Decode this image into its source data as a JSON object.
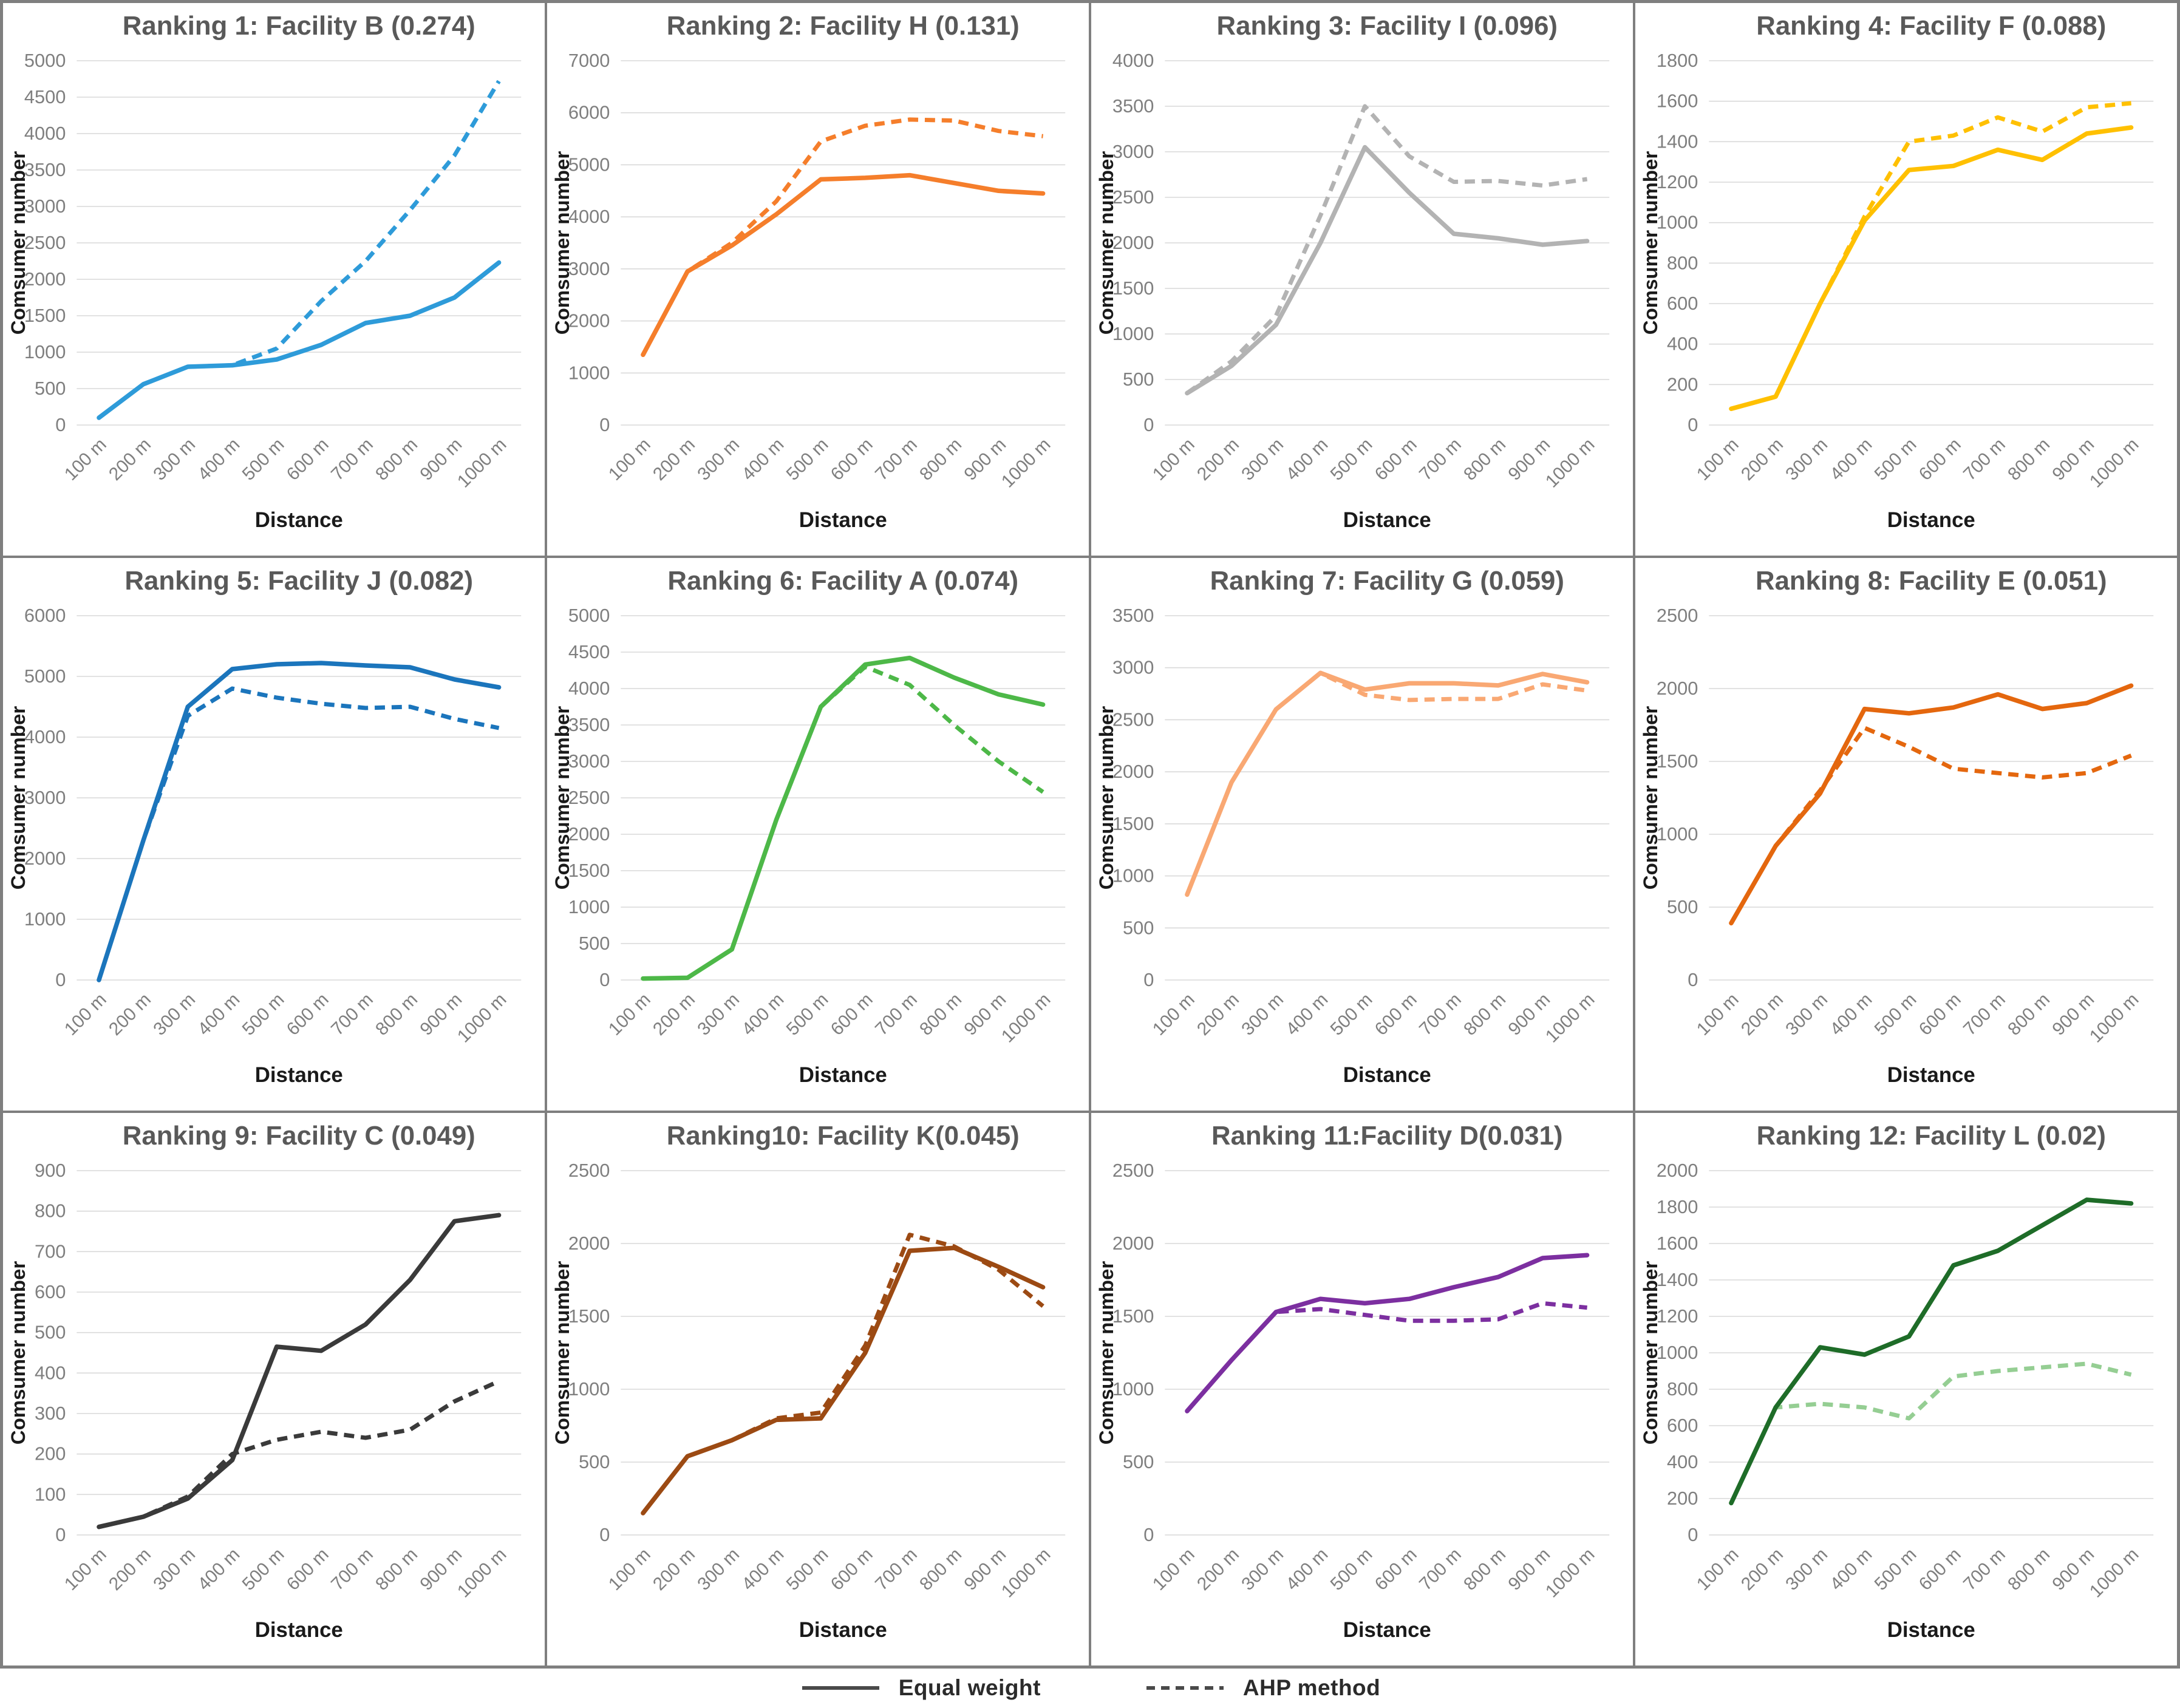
{
  "axis": {
    "x_title": "Distance",
    "y_title": "Comsumer number",
    "x_categories": [
      "100 m",
      "200 m",
      "300 m",
      "400 m",
      "500 m",
      "600 m",
      "700 m",
      "800 m",
      "900 m",
      "1000 m"
    ]
  },
  "legend": {
    "items": [
      {
        "label": "Equal weight",
        "style": "solid",
        "color": "#4a4a4a"
      },
      {
        "label": "AHP method",
        "style": "dashed",
        "color": "#4a4a4a"
      }
    ]
  },
  "styles": {
    "title_color": "#595959",
    "tick_color": "#7f7f7f",
    "axis_title_color": "#1a1a1a",
    "gridline_color": "#d9d9d9",
    "panel_border_color": "#7f7f7f"
  },
  "chart_data": [
    {
      "type": "line",
      "title": "Ranking 1: Facility B (0.274)",
      "color": "#2e9bd9",
      "dash_color": "#2e9bd9",
      "ylim": [
        0,
        5000
      ],
      "ystep": 500,
      "grid": true,
      "xlabel": "Distance",
      "ylabel": "Comsumer number",
      "categories": [
        "100 m",
        "200 m",
        "300 m",
        "400 m",
        "500 m",
        "600 m",
        "700 m",
        "800 m",
        "900 m",
        "1000 m"
      ],
      "series": [
        {
          "name": "Equal weight",
          "values": [
            100,
            560,
            800,
            820,
            900,
            1100,
            1400,
            1500,
            1750,
            2230
          ]
        },
        {
          "name": "AHP method",
          "values": [
            100,
            560,
            800,
            820,
            1050,
            1700,
            2250,
            2950,
            3700,
            4720
          ]
        }
      ]
    },
    {
      "type": "line",
      "title": "Ranking 2: Facility H (0.131)",
      "color": "#f57e2b",
      "dash_color": "#f57e2b",
      "ylim": [
        0,
        7000
      ],
      "ystep": 1000,
      "grid": true,
      "xlabel": "Distance",
      "ylabel": "Comsumer number",
      "categories": [
        "100 m",
        "200 m",
        "300 m",
        "400 m",
        "500 m",
        "600 m",
        "700 m",
        "800 m",
        "900 m",
        "1000 m"
      ],
      "series": [
        {
          "name": "Equal weight",
          "values": [
            1350,
            2950,
            3450,
            4050,
            4720,
            4750,
            4800,
            4650,
            4500,
            4450
          ]
        },
        {
          "name": "AHP method",
          "values": [
            1350,
            2950,
            3500,
            4300,
            5450,
            5750,
            5870,
            5850,
            5650,
            5550
          ]
        }
      ]
    },
    {
      "type": "line",
      "title": "Ranking 3: Facility I (0.096)",
      "color": "#b3b3b3",
      "dash_color": "#b3b3b3",
      "ylim": [
        0,
        4000
      ],
      "ystep": 500,
      "grid": true,
      "xlabel": "Distance",
      "ylabel": "Comsumer number",
      "categories": [
        "100 m",
        "200 m",
        "300 m",
        "400 m",
        "500 m",
        "600 m",
        "700 m",
        "800 m",
        "900 m",
        "1000 m"
      ],
      "series": [
        {
          "name": "Equal weight",
          "values": [
            350,
            650,
            1100,
            2000,
            3050,
            2550,
            2100,
            2050,
            1980,
            2020
          ]
        },
        {
          "name": "AHP method",
          "values": [
            350,
            700,
            1200,
            2300,
            3500,
            2950,
            2670,
            2680,
            2630,
            2700
          ]
        }
      ]
    },
    {
      "type": "line",
      "title": "Ranking 4: Facility F (0.088)",
      "color": "#ffc000",
      "dash_color": "#ffc000",
      "ylim": [
        0,
        1800
      ],
      "ystep": 200,
      "grid": true,
      "xlabel": "Distance",
      "ylabel": "Comsumer number",
      "categories": [
        "100 m",
        "200 m",
        "300 m",
        "400 m",
        "500 m",
        "600 m",
        "700 m",
        "800 m",
        "900 m",
        "1000 m"
      ],
      "series": [
        {
          "name": "Equal weight",
          "values": [
            80,
            140,
            600,
            1010,
            1260,
            1280,
            1360,
            1310,
            1440,
            1470
          ]
        },
        {
          "name": "AHP method",
          "values": [
            80,
            140,
            600,
            1030,
            1400,
            1430,
            1520,
            1450,
            1570,
            1590
          ]
        }
      ]
    },
    {
      "type": "line",
      "title": "Ranking 5: Facility J (0.082)",
      "color": "#1b75bc",
      "dash_color": "#1b75bc",
      "ylim": [
        0,
        6000
      ],
      "ystep": 1000,
      "grid": true,
      "xlabel": "Distance",
      "ylabel": "Comsumer number",
      "categories": [
        "100 m",
        "200 m",
        "300 m",
        "400 m",
        "500 m",
        "600 m",
        "700 m",
        "800 m",
        "900 m",
        "1000 m"
      ],
      "series": [
        {
          "name": "Equal weight",
          "values": [
            0,
            2300,
            4500,
            5120,
            5200,
            5220,
            5180,
            5150,
            4950,
            4820
          ]
        },
        {
          "name": "AHP method",
          "values": [
            0,
            2300,
            4350,
            4800,
            4650,
            4550,
            4480,
            4500,
            4300,
            4150
          ]
        }
      ]
    },
    {
      "type": "line",
      "title": "Ranking 6: Facility A (0.074)",
      "color": "#4db848",
      "dash_color": "#4db848",
      "ylim": [
        0,
        5000
      ],
      "ystep": 500,
      "grid": true,
      "xlabel": "Distance",
      "ylabel": "Comsumer number",
      "categories": [
        "100 m",
        "200 m",
        "300 m",
        "400 m",
        "500 m",
        "600 m",
        "700 m",
        "800 m",
        "900 m",
        "1000 m"
      ],
      "series": [
        {
          "name": "Equal weight",
          "values": [
            20,
            30,
            420,
            2200,
            3750,
            4330,
            4420,
            4150,
            3920,
            3780
          ]
        },
        {
          "name": "AHP method",
          "values": [
            20,
            30,
            420,
            2200,
            3750,
            4300,
            4050,
            3500,
            3000,
            2580
          ]
        }
      ]
    },
    {
      "type": "line",
      "title": "Ranking 7: Facility G (0.059)",
      "color": "#f9a873",
      "dash_color": "#f9a873",
      "ylim": [
        0,
        3500
      ],
      "ystep": 500,
      "grid": true,
      "xlabel": "Distance",
      "ylabel": "Comsumer number",
      "categories": [
        "100 m",
        "200 m",
        "300 m",
        "400 m",
        "500 m",
        "600 m",
        "700 m",
        "800 m",
        "900 m",
        "1000 m"
      ],
      "series": [
        {
          "name": "Equal weight",
          "values": [
            820,
            1900,
            2600,
            2950,
            2790,
            2850,
            2850,
            2830,
            2940,
            2860
          ]
        },
        {
          "name": "AHP method",
          "values": [
            820,
            1900,
            2600,
            2950,
            2740,
            2690,
            2700,
            2700,
            2840,
            2780
          ]
        }
      ]
    },
    {
      "type": "line",
      "title": "Ranking 8: Facility E (0.051)",
      "color": "#e4670e",
      "dash_color": "#e4670e",
      "ylim": [
        0,
        2500
      ],
      "ystep": 500,
      "grid": true,
      "xlabel": "Distance",
      "ylabel": "Comsumer number",
      "categories": [
        "100 m",
        "200 m",
        "300 m",
        "400 m",
        "500 m",
        "600 m",
        "700 m",
        "800 m",
        "900 m",
        "1000 m"
      ],
      "series": [
        {
          "name": "Equal weight",
          "values": [
            390,
            920,
            1280,
            1860,
            1830,
            1870,
            1960,
            1860,
            1900,
            2020
          ]
        },
        {
          "name": "AHP method",
          "values": [
            390,
            920,
            1300,
            1730,
            1600,
            1450,
            1420,
            1390,
            1420,
            1540
          ]
        }
      ]
    },
    {
      "type": "line",
      "title": "Ranking 9: Facility C (0.049)",
      "color": "#3a3a3a",
      "dash_color": "#3a3a3a",
      "ylim": [
        0,
        900
      ],
      "ystep": 100,
      "grid": true,
      "xlabel": "Distance",
      "ylabel": "Comsumer number",
      "categories": [
        "100 m",
        "200 m",
        "300 m",
        "400 m",
        "500 m",
        "600 m",
        "700 m",
        "800 m",
        "900 m",
        "1000 m"
      ],
      "series": [
        {
          "name": "Equal weight",
          "values": [
            20,
            45,
            90,
            185,
            465,
            455,
            520,
            630,
            775,
            790
          ]
        },
        {
          "name": "AHP method",
          "values": [
            20,
            45,
            95,
            200,
            235,
            255,
            240,
            260,
            330,
            380
          ]
        }
      ]
    },
    {
      "type": "line",
      "title": "Ranking10: Facility K(0.045)",
      "color": "#9c4a13",
      "dash_color": "#9c4a13",
      "ylim": [
        0,
        2500
      ],
      "ystep": 500,
      "grid": true,
      "xlabel": "Distance",
      "ylabel": "Comsumer number",
      "categories": [
        "100 m",
        "200 m",
        "300 m",
        "400 m",
        "500 m",
        "600 m",
        "700 m",
        "800 m",
        "900 m",
        "1000 m"
      ],
      "series": [
        {
          "name": "Equal weight",
          "values": [
            150,
            540,
            650,
            790,
            800,
            1250,
            1950,
            1970,
            1840,
            1700
          ]
        },
        {
          "name": "AHP method",
          "values": [
            150,
            540,
            650,
            800,
            840,
            1300,
            2060,
            1980,
            1820,
            1570
          ]
        }
      ]
    },
    {
      "type": "line",
      "title": "Ranking 11:Facility D(0.031)",
      "color": "#7c2fa0",
      "dash_color": "#7c2fa0",
      "ylim": [
        0,
        2500
      ],
      "ystep": 500,
      "grid": true,
      "xlabel": "Distance",
      "ylabel": "Comsumer number",
      "categories": [
        "100 m",
        "200 m",
        "300 m",
        "400 m",
        "500 m",
        "600 m",
        "700 m",
        "800 m",
        "900 m",
        "1000 m"
      ],
      "series": [
        {
          "name": "Equal weight",
          "values": [
            850,
            1200,
            1530,
            1620,
            1590,
            1620,
            1700,
            1770,
            1900,
            1920
          ]
        },
        {
          "name": "AHP method",
          "values": [
            850,
            1200,
            1530,
            1550,
            1510,
            1470,
            1470,
            1480,
            1590,
            1560
          ]
        }
      ]
    },
    {
      "type": "line",
      "title": "Ranking 12: Facility L (0.02)",
      "color": "#1e6c28",
      "dash_color": "#95ce93",
      "ylim": [
        0,
        2000
      ],
      "ystep": 200,
      "grid": true,
      "xlabel": "Distance",
      "ylabel": "Comsumer number",
      "categories": [
        "100 m",
        "200 m",
        "300 m",
        "400 m",
        "500 m",
        "600 m",
        "700 m",
        "800 m",
        "900 m",
        "1000 m"
      ],
      "series": [
        {
          "name": "Equal weight",
          "values": [
            175,
            700,
            1030,
            990,
            1090,
            1480,
            1560,
            1700,
            1840,
            1820
          ]
        },
        {
          "name": "AHP method",
          "values": [
            175,
            700,
            720,
            700,
            640,
            870,
            900,
            920,
            940,
            880
          ]
        }
      ]
    }
  ]
}
